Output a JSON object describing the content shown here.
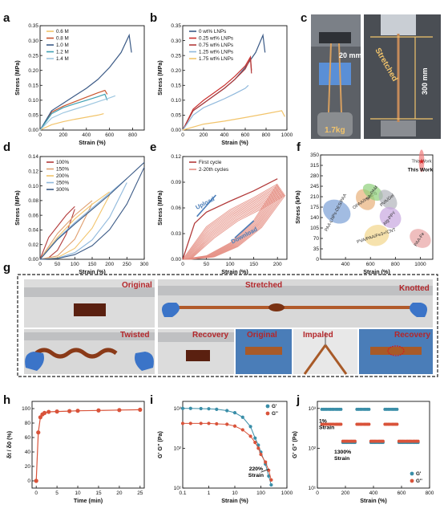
{
  "panel_labels": [
    "a",
    "b",
    "c",
    "d",
    "e",
    "f",
    "g",
    "h",
    "i",
    "j"
  ],
  "colors": {
    "a": [
      "#f2c46b",
      "#c9562f",
      "#3b5a86",
      "#3fa0b3",
      "#9ec7e0"
    ],
    "b": [
      "#3b5a86",
      "#c9302e",
      "#b23a3a",
      "#8fb8dc",
      "#f2c46b"
    ],
    "d": [
      "#b23a3a",
      "#e0a070",
      "#f2c46b",
      "#8fb8dc",
      "#3b5a86"
    ],
    "e": [
      "#b23a3a",
      "#e48c80"
    ],
    "h": "#d9533a",
    "i": [
      "#3a8ea8",
      "#d9533a"
    ],
    "j": [
      "#3a8ea8",
      "#d9533a"
    ],
    "g_frame": "#222222",
    "photo_label": "#b3262a"
  },
  "photos": {
    "c": {
      "dim_top": "20 mm",
      "dim_side": "300 mm",
      "stretched": "Stretched",
      "weight": "1.7kg"
    },
    "g": {
      "original": "Original",
      "stretched": "Stretched",
      "knotted": "Knotted",
      "twisted": "Twisted",
      "recovery": "Recovery",
      "original2": "Original",
      "impaled": "Impaled",
      "recovery2": "Recovery"
    }
  },
  "chart_data": [
    {
      "panel": "a",
      "type": "line",
      "xlabel": "Strain (%)",
      "ylabel": "Stress (MPa)",
      "xlim": [
        0,
        900
      ],
      "ylim": [
        0,
        0.35
      ],
      "xticks": [
        0,
        200,
        400,
        600,
        800
      ],
      "yticks": [
        0.0,
        0.05,
        0.1,
        0.15,
        0.2,
        0.25,
        0.3,
        0.35
      ],
      "legend": "top-left",
      "series": [
        {
          "name": "0.6 M",
          "x": [
            0,
            100,
            200,
            300,
            400,
            500,
            550
          ],
          "y": [
            0,
            0.018,
            0.028,
            0.036,
            0.043,
            0.05,
            0.055
          ]
        },
        {
          "name": "0.8 M",
          "x": [
            0,
            100,
            200,
            300,
            400,
            500,
            560,
            580
          ],
          "y": [
            0,
            0.06,
            0.08,
            0.095,
            0.11,
            0.125,
            0.133,
            0.12
          ]
        },
        {
          "name": "1.0 M",
          "x": [
            0,
            100,
            200,
            300,
            400,
            500,
            600,
            700,
            770,
            790
          ],
          "y": [
            0,
            0.065,
            0.09,
            0.115,
            0.14,
            0.17,
            0.21,
            0.26,
            0.318,
            0.26
          ]
        },
        {
          "name": "1.2 M",
          "x": [
            0,
            100,
            200,
            300,
            400,
            500,
            560,
            580
          ],
          "y": [
            0,
            0.055,
            0.075,
            0.088,
            0.1,
            0.112,
            0.12,
            0.1
          ]
        },
        {
          "name": "1.4 M",
          "x": [
            0,
            100,
            200,
            300,
            400,
            500,
            600,
            650
          ],
          "y": [
            0,
            0.04,
            0.058,
            0.07,
            0.082,
            0.095,
            0.108,
            0.115
          ]
        }
      ]
    },
    {
      "panel": "b",
      "type": "line",
      "xlabel": "Strain (%)",
      "ylabel": "Stress (MPa)",
      "xlim": [
        0,
        1000
      ],
      "ylim": [
        0,
        0.35
      ],
      "xticks": [
        0,
        200,
        400,
        600,
        800,
        1000
      ],
      "yticks": [
        0.0,
        0.05,
        0.1,
        0.15,
        0.2,
        0.25,
        0.3,
        0.35
      ],
      "legend": "top-left",
      "series": [
        {
          "name": "0 wt% LNPs",
          "x": [
            0,
            100,
            200,
            300,
            400,
            500,
            600,
            700,
            770,
            790
          ],
          "y": [
            0,
            0.065,
            0.09,
            0.115,
            0.14,
            0.17,
            0.21,
            0.26,
            0.318,
            0.26
          ]
        },
        {
          "name": "0.25 wt% LNPs",
          "x": [
            0,
            100,
            200,
            300,
            400,
            500,
            600,
            650,
            660
          ],
          "y": [
            0,
            0.07,
            0.1,
            0.125,
            0.15,
            0.18,
            0.215,
            0.245,
            0.2
          ]
        },
        {
          "name": "0.75 wt% LNPs",
          "x": [
            0,
            100,
            200,
            300,
            400,
            500,
            600,
            650,
            660
          ],
          "y": [
            0,
            0.065,
            0.09,
            0.115,
            0.14,
            0.17,
            0.205,
            0.24,
            0.19
          ]
        },
        {
          "name": "1.25 wt% LNPs",
          "x": [
            0,
            100,
            200,
            300,
            400,
            500,
            600,
            630
          ],
          "y": [
            0,
            0.05,
            0.075,
            0.09,
            0.105,
            0.122,
            0.14,
            0.15
          ]
        },
        {
          "name": "1.75 wt% LNPs",
          "x": [
            0,
            200,
            400,
            600,
            800,
            950,
            980
          ],
          "y": [
            0,
            0.02,
            0.03,
            0.042,
            0.055,
            0.065,
            0.045
          ]
        }
      ]
    },
    {
      "panel": "d",
      "type": "line",
      "xlabel": "Strain (%)",
      "ylabel": "Stress (MPa)",
      "xlim": [
        0,
        300
      ],
      "ylim": [
        0,
        0.14
      ],
      "xticks": [
        0,
        50,
        100,
        150,
        200,
        250,
        300
      ],
      "yticks": [
        0.0,
        0.02,
        0.04,
        0.06,
        0.08,
        0.1,
        0.12,
        0.14
      ],
      "legend": "top-left",
      "series": [
        {
          "name": "100%",
          "x": [
            0,
            25,
            50,
            75,
            100
          ],
          "y": [
            0,
            0.03,
            0.045,
            0.06,
            0.072
          ]
        },
        {
          "name": "150%",
          "x": [
            0,
            50,
            100,
            150
          ],
          "y": [
            0,
            0.035,
            0.06,
            0.08
          ]
        },
        {
          "name": "200%",
          "x": [
            0,
            50,
            100,
            150,
            200
          ],
          "y": [
            0,
            0.03,
            0.055,
            0.075,
            0.092
          ]
        },
        {
          "name": "250%",
          "x": [
            0,
            50,
            100,
            150,
            200,
            250
          ],
          "y": [
            0,
            0.028,
            0.05,
            0.07,
            0.09,
            0.11
          ]
        },
        {
          "name": "300%",
          "x": [
            0,
            50,
            100,
            150,
            200,
            250,
            300
          ],
          "y": [
            0,
            0.027,
            0.048,
            0.068,
            0.088,
            0.11,
            0.132
          ]
        }
      ]
    },
    {
      "panel": "e",
      "type": "line",
      "xlabel": "Strain (%)",
      "ylabel": "Stress (MPa)",
      "xlim": [
        0,
        220
      ],
      "ylim": [
        0,
        0.12
      ],
      "xticks": [
        0,
        50,
        100,
        150,
        200
      ],
      "yticks": [
        0.0,
        0.03,
        0.06,
        0.09,
        0.12
      ],
      "legend": "top-left",
      "annotations": [
        "Upload",
        "Download"
      ],
      "series": [
        {
          "name": "First cycle",
          "x": [
            0,
            25,
            50,
            100,
            150,
            200
          ],
          "y": [
            0,
            0.042,
            0.055,
            0.068,
            0.08,
            0.094
          ]
        },
        {
          "name": "2-20th cycles",
          "x": [
            0,
            50,
            100,
            150,
            200
          ],
          "y": [
            0,
            0.038,
            0.058,
            0.072,
            0.088
          ]
        }
      ]
    },
    {
      "panel": "f",
      "type": "scatter",
      "xlabel": "Strain (%)",
      "ylabel": "Stress (kPa)",
      "xlim": [
        200,
        1100
      ],
      "ylim": [
        0,
        350
      ],
      "xticks": [
        400,
        600,
        800,
        1000
      ],
      "yticks": [
        0,
        35,
        70,
        105,
        140,
        175,
        210,
        245,
        280,
        315,
        350
      ],
      "labels": [
        "PAA-LNPs-DES/PAA",
        "OPAA/Ime/Lig",
        "PVA-PA",
        "PVA/Gel",
        "PEO/Hbc",
        "SA-PAM",
        "Alg-PPY",
        "PVA/PAA/Fe3+/CNT",
        "PAA-Fe",
        "This Work"
      ]
    },
    {
      "panel": "h",
      "type": "line",
      "xlabel": "Time (min)",
      "ylabel": "δt / δ0 (%)",
      "xlim": [
        -1,
        26
      ],
      "ylim": [
        -10,
        110
      ],
      "xticks": [
        0,
        5,
        10,
        15,
        20,
        25
      ],
      "yticks": [
        0,
        20,
        40,
        60,
        80,
        100
      ],
      "x": [
        0,
        0.5,
        1,
        1.5,
        2,
        3,
        5,
        8,
        10,
        15,
        20,
        25
      ],
      "y": [
        0,
        67,
        88,
        92,
        94,
        95.5,
        96,
        96.5,
        97,
        97.5,
        98,
        98.5
      ]
    },
    {
      "panel": "i",
      "type": "line",
      "xlabel": "Strain (%)",
      "ylabel": "G' G'' (Pa)",
      "xscale": "log",
      "yscale": "log",
      "xlim": [
        0.1,
        1000
      ],
      "ylim": [
        10,
        1500
      ],
      "xticks": [
        "0.1",
        "1",
        "10",
        "100",
        "1000"
      ],
      "yticks": [
        "10¹",
        "10²",
        "10³"
      ],
      "annotation": "220%\nStrain",
      "legend": "top-right",
      "series": [
        {
          "name": "G'",
          "x": [
            0.1,
            0.2,
            0.5,
            1,
            2,
            5,
            10,
            20,
            40,
            60,
            80,
            100,
            150,
            200,
            250
          ],
          "y": [
            1000,
            1000,
            990,
            980,
            950,
            880,
            780,
            600,
            350,
            180,
            120,
            80,
            40,
            20,
            12
          ]
        },
        {
          "name": "G''",
          "x": [
            0.1,
            0.2,
            0.5,
            1,
            2,
            5,
            10,
            20,
            40,
            60,
            80,
            100,
            150,
            200,
            250
          ],
          "y": [
            420,
            420,
            420,
            420,
            410,
            400,
            360,
            290,
            200,
            140,
            100,
            70,
            45,
            28,
            16
          ]
        }
      ]
    },
    {
      "panel": "j",
      "type": "scatter",
      "xlabel": "Strain (%)",
      "ylabel": "G' G'' (Pa)",
      "yscale": "log",
      "xlim": [
        0,
        800
      ],
      "ylim": [
        10,
        1500
      ],
      "xticks": [
        0,
        200,
        400,
        600,
        800
      ],
      "yticks": [
        "10¹",
        "10²",
        "10³"
      ],
      "annotations": [
        "1%\nStrain",
        "1300%\nStrain"
      ],
      "legend": "bottom-right",
      "series": [
        {
          "name": "G'",
          "x": [
            50,
            100,
            150,
            200,
            250,
            300,
            350,
            400,
            450,
            500,
            550,
            600,
            650,
            700
          ],
          "y": [
            950,
            950,
            950,
            140,
            140,
            950,
            950,
            140,
            140,
            950,
            950,
            140,
            140,
            140
          ]
        },
        {
          "name": "G''",
          "x": [
            50,
            100,
            150,
            200,
            250,
            300,
            350,
            400,
            450,
            500,
            550,
            600,
            650,
            700
          ],
          "y": [
            400,
            400,
            400,
            150,
            150,
            400,
            400,
            150,
            150,
            400,
            400,
            150,
            150,
            150
          ]
        }
      ]
    }
  ]
}
